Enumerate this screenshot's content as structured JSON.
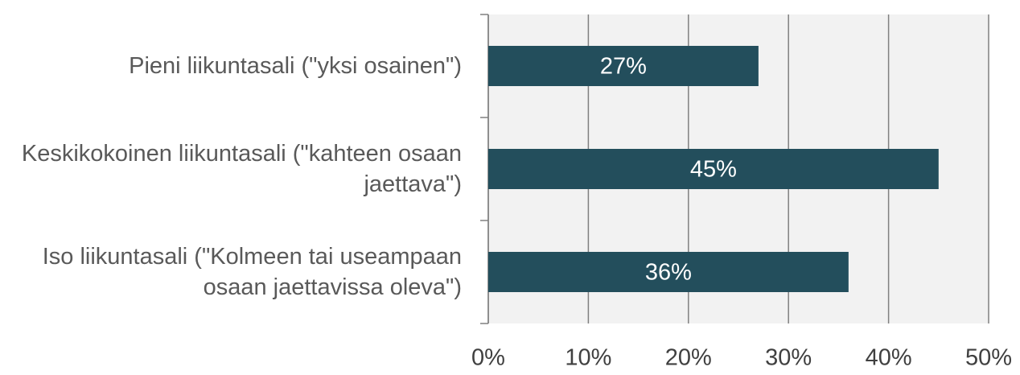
{
  "chart_data": {
    "type": "bar",
    "orientation": "horizontal",
    "categories": [
      "Pieni liikuntasali (\"yksi osainen\")",
      "Keskikokoinen liikuntasali (\"kahteen osaan jaettava\")",
      "Iso liikuntasali (\"Kolmeen tai useampaan osaan jaettavissa oleva\")"
    ],
    "values": [
      27,
      45,
      36
    ],
    "value_labels": [
      "27%",
      "45%",
      "36%"
    ],
    "color": "#234e5c",
    "xlim": [
      0,
      50
    ],
    "xticks": [
      {
        "value": 0,
        "label": "0%"
      },
      {
        "value": 10,
        "label": "10%"
      },
      {
        "value": 20,
        "label": "20%"
      },
      {
        "value": 30,
        "label": "30%"
      },
      {
        "value": 40,
        "label": "40%"
      },
      {
        "value": 50,
        "label": "50%"
      }
    ],
    "grid": true
  }
}
